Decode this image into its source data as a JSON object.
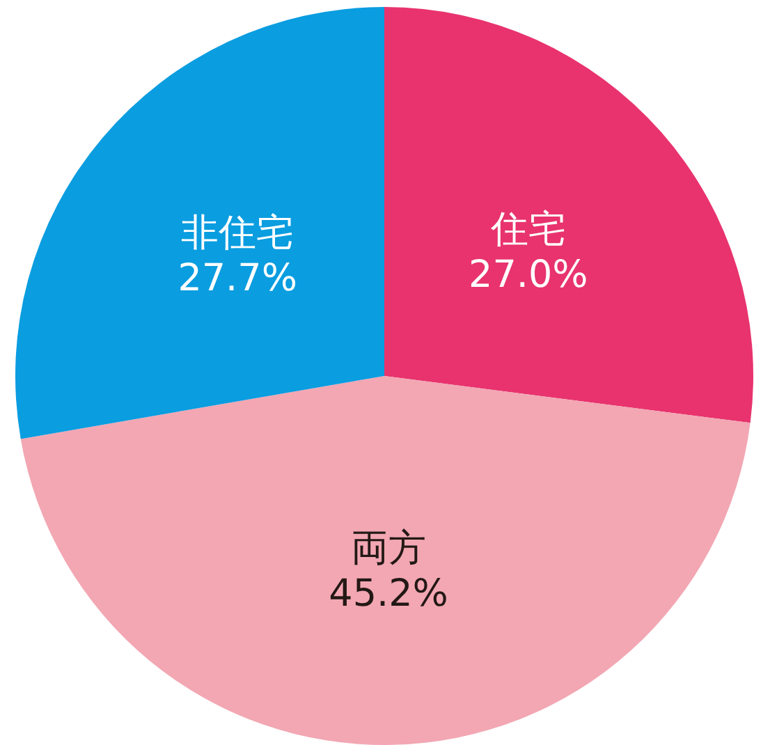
{
  "chart_data": {
    "type": "pie",
    "categories": [
      "住宅",
      "両方",
      "非住宅"
    ],
    "values": [
      27.0,
      45.2,
      27.7
    ],
    "colors": [
      "#e8336f",
      "#f2a7b3",
      "#0a9de0"
    ],
    "value_labels": [
      "27.0%",
      "45.2%",
      "27.7%"
    ],
    "legend": false
  }
}
